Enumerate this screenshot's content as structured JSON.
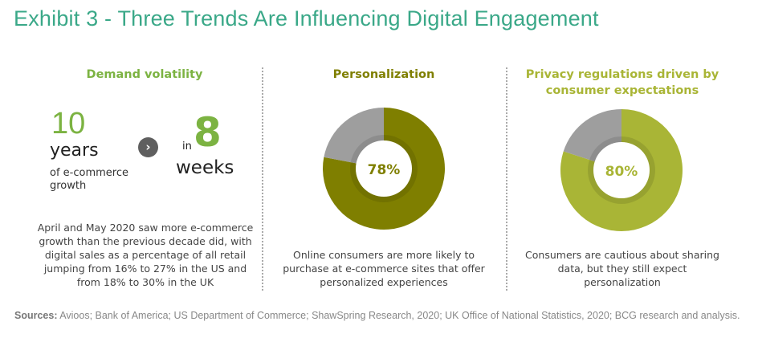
{
  "title": "Exhibit 3 - Three Trends Are Influencing Digital Engagement",
  "columns": {
    "demand": {
      "heading": "Demand volatility",
      "big_number": "10",
      "unit": "years",
      "unit_sub": "of e-commerce growth",
      "in_label": "in",
      "target_number": "8",
      "target_unit": "weeks",
      "description": "April and May 2020 saw more e-commerce growth than the previous decade did, with digital sales as a percentage of all retail jumping from 16% to 27% in the US and from 18% to 30% in the UK"
    },
    "personalization": {
      "heading": "Personalization",
      "percent": 78,
      "percent_label": "78%",
      "description": "Online consumers are more likely to purchase at e-commerce sites that offer personalized experiences"
    },
    "privacy": {
      "heading": "Privacy regulations driven by consumer expectations",
      "percent": 80,
      "percent_label": "80%",
      "description": "Consumers are cautious about sharing data, but they still expect personalization"
    }
  },
  "sources_label": "Sources:",
  "sources_text": " Avioos; Bank of America; US Department of Commerce; ShawSpring Research, 2020; UK Office of National Statistics, 2020; BCG research and analysis.",
  "colors": {
    "title": "#3aa888",
    "demand_accent": "#7cb342",
    "personalization": "#7f7f00",
    "privacy": "#a9b536",
    "remainder": "#9e9e9e"
  }
}
